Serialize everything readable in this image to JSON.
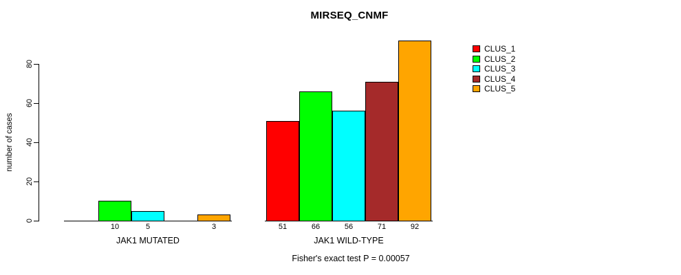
{
  "chart_data": {
    "type": "bar",
    "title": "MIRSEQ_CNMF",
    "ylabel": "number of cases",
    "xlabel": "",
    "ylim": [
      0,
      80
    ],
    "yticks": [
      0,
      20,
      40,
      60,
      80
    ],
    "grid": false,
    "legend_position": "right",
    "legend": [
      {
        "label": "CLUS_1",
        "color": "#ff0000"
      },
      {
        "label": "CLUS_2",
        "color": "#00ff00"
      },
      {
        "label": "CLUS_3",
        "color": "#00ffff"
      },
      {
        "label": "CLUS_4",
        "color": "#a52a2a"
      },
      {
        "label": "CLUS_5",
        "color": "#ffa500"
      }
    ],
    "categories": [
      "JAK1 MUTATED",
      "JAK1 WILD-TYPE"
    ],
    "groups": [
      {
        "label": "JAK1 MUTATED",
        "values": [
          0,
          10,
          5,
          0,
          3
        ]
      },
      {
        "label": "JAK1 WILD-TYPE",
        "values": [
          51,
          66,
          56,
          71,
          92
        ]
      }
    ],
    "series": [
      {
        "name": "CLUS_1",
        "values": [
          0,
          51
        ]
      },
      {
        "name": "CLUS_2",
        "values": [
          10,
          66
        ]
      },
      {
        "name": "CLUS_3",
        "values": [
          5,
          56
        ]
      },
      {
        "name": "CLUS_4",
        "values": [
          0,
          71
        ]
      },
      {
        "name": "CLUS_5",
        "values": [
          3,
          92
        ]
      }
    ],
    "bar_labels_shown_for_nonzero_only": true,
    "footnote": "Fisher's exact test P = 0.00057",
    "axis_color": "#000000",
    "bar_border_color": "#000000"
  }
}
